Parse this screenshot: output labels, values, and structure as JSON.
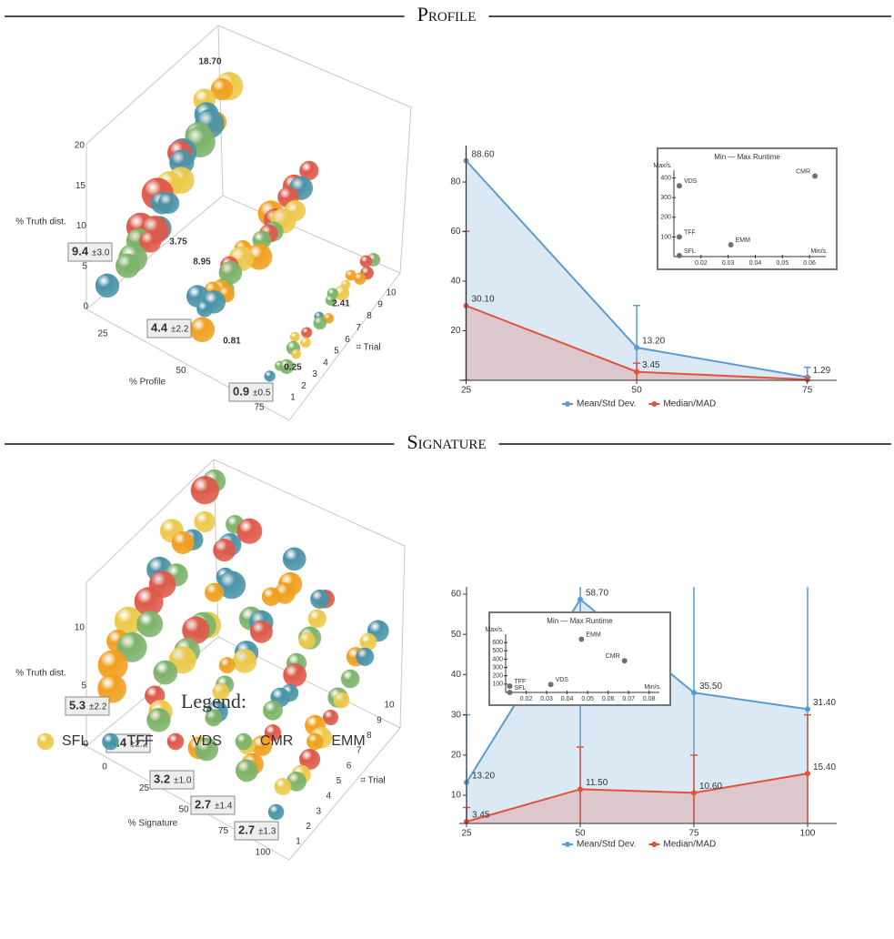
{
  "sections": [
    {
      "title": "Profile"
    },
    {
      "title": "Signature"
    }
  ],
  "legend": {
    "title": "Legend:",
    "items": [
      {
        "name": "SFL",
        "color": "#ecc94b"
      },
      {
        "name": "TFF",
        "color": "#4b93a8"
      },
      {
        "name": "VDS",
        "color": "#dd5a4a"
      },
      {
        "name": "CMR",
        "color": "#7db36a"
      },
      {
        "name": "EMM",
        "color": "#f0a020"
      }
    ]
  },
  "chart_data": [
    {
      "type": "bubble3d",
      "x_label": "% Profile",
      "y_label": "⌗ Trial",
      "z_label": "% Truth dist.",
      "xticks": [
        25,
        50,
        75
      ],
      "yticks": [
        1,
        2,
        3,
        4,
        5,
        6,
        7,
        8,
        9,
        10
      ],
      "zticks": [
        0,
        5,
        10,
        15,
        20
      ],
      "annotations": [
        {
          "value": 18.7,
          "label": "18.70"
        },
        {
          "value": 3.75,
          "label": "3.75"
        },
        {
          "value": 8.95,
          "label": "8.95"
        },
        {
          "value": 0.81,
          "label": "0.81"
        },
        {
          "value": 2.41,
          "label": "2.41"
        },
        {
          "value": 0.25,
          "label": "0.25"
        }
      ],
      "summaries": [
        {
          "mean": 9.4,
          "spread": {
            "value": 3.0,
            "label": "±3.0"
          }
        },
        {
          "mean": 4.4,
          "spread": {
            "value": 2.2,
            "label": "±2.2"
          }
        },
        {
          "mean": 0.9,
          "spread": {
            "value": 0.5,
            "label": "±0.5"
          }
        }
      ]
    },
    {
      "type": "line",
      "x": [
        25,
        50,
        75
      ],
      "xlim": [
        24,
        79.3
      ],
      "xticks": [
        25,
        50,
        75
      ],
      "ylim": [
        0,
        94.7
      ],
      "yticks": [
        20,
        40,
        60,
        80
      ],
      "series": [
        {
          "name": "Mean/Std Dev.",
          "color": "#5b9bd0",
          "values": [
            88.6,
            13.2,
            1.29
          ],
          "errors": [
            90,
            17,
            4
          ],
          "value_labels": [
            "88.60",
            "13.20",
            "1.29"
          ]
        },
        {
          "name": "Median/MAD",
          "color": "#e0533a",
          "values": [
            30.1,
            3.45,
            0.3
          ],
          "errors": [
            30,
            3.5,
            1
          ],
          "value_labels": [
            "30.10",
            "3.45",
            null
          ]
        }
      ],
      "inset": {
        "type": "scatter",
        "title": "Min — Max Runtime",
        "x_label": "Min/s.",
        "y_label": "Max/s.",
        "color": "#707070",
        "categories": [
          "CMR",
          "VDS",
          "TFF",
          "EMM",
          "SFL"
        ],
        "x": [
          0.062,
          0.012,
          0.012,
          0.031,
          0.012
        ],
        "values": [
          410,
          360,
          100,
          60,
          5
        ],
        "xlim": [
          0.01,
          0.066
        ],
        "ylim": [
          0,
          440
        ],
        "xticks": [
          0.02,
          0.03,
          0.04,
          0.05,
          0.06
        ],
        "yticks": [
          100,
          200,
          300,
          400
        ]
      }
    },
    {
      "type": "bubble3d",
      "x_label": "% Signature",
      "y_label": "⌗ Trial",
      "z_label": "% Truth dist.",
      "xticks": [
        0,
        25,
        50,
        75,
        100
      ],
      "yticks": [
        1,
        2,
        3,
        4,
        5,
        6,
        7,
        8,
        9,
        10
      ],
      "zticks": [
        0,
        5,
        10
      ],
      "annotations": [],
      "summaries": [
        {
          "mean": 5.3,
          "spread": {
            "value": 2.2,
            "label": "±2.2"
          }
        },
        {
          "mean": 4.4,
          "spread": {
            "value": 2.2,
            "label": "±2.2"
          }
        },
        {
          "mean": 3.2,
          "spread": {
            "value": 1.0,
            "label": "±1.0"
          }
        },
        {
          "mean": 2.7,
          "spread": {
            "value": 1.4,
            "label": "±1.4"
          }
        },
        {
          "mean": 2.7,
          "spread": {
            "value": 1.3,
            "label": "±1.3"
          }
        }
      ]
    },
    {
      "type": "line",
      "x": [
        25,
        50,
        75,
        100
      ],
      "xlim": [
        23.4,
        106.4
      ],
      "xticks": [
        25,
        50,
        75,
        100
      ],
      "ylim": [
        3,
        61.8
      ],
      "yticks": [
        10,
        20,
        30,
        40,
        50,
        60
      ],
      "series": [
        {
          "name": "Mean/Std Dev.",
          "color": "#5b9bd0",
          "values": [
            13.2,
            58.7,
            35.5,
            31.4
          ],
          "errors": [
            16.8,
            60,
            60,
            60
          ],
          "value_labels": [
            "13.20",
            "58.70",
            "35.50",
            "31.40"
          ]
        },
        {
          "name": "Median/MAD",
          "color": "#e0533a",
          "values": [
            3.45,
            11.5,
            10.6,
            15.4
          ],
          "errors": [
            3.5,
            10.5,
            9.4,
            14.6
          ],
          "value_labels": [
            "3.45",
            "11.50",
            "10.60",
            "15.40"
          ]
        }
      ],
      "inset": {
        "type": "scatter",
        "title": "Min — Max Runtime",
        "x_label": "Min/s.",
        "y_label": "Max/s.",
        "color": "#707070",
        "categories": [
          "EMM",
          "CMR",
          "VDS",
          "TFF",
          "SFL"
        ],
        "x": [
          0.047,
          0.068,
          0.032,
          0.012,
          0.012
        ],
        "values": [
          640,
          380,
          95,
          75,
          0
        ],
        "xlim": [
          0.01,
          0.085
        ],
        "ylim": [
          0,
          700
        ],
        "xticks": [
          0.02,
          0.03,
          0.04,
          0.05,
          0.06,
          0.07,
          0.08
        ],
        "yticks": [
          100,
          200,
          300,
          400,
          500,
          600
        ]
      }
    }
  ]
}
